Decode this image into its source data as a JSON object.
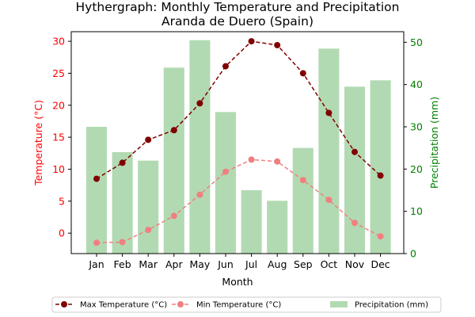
{
  "chart_data": {
    "type": "bar+line",
    "title_line1": "Hythergraph: Monthly Temperature and Precipitation",
    "title_line2": "Aranda de Duero (Spain)",
    "xlabel": "Month",
    "ylabel_left": "Temperature (°C)",
    "ylabel_right": "Precipitation (mm)",
    "categories": [
      "Jan",
      "Feb",
      "Mar",
      "Apr",
      "May",
      "Jun",
      "Jul",
      "Aug",
      "Sep",
      "Oct",
      "Nov",
      "Dec"
    ],
    "ylim_left": [
      -3.2,
      31.5
    ],
    "ylim_right": [
      0,
      52.5
    ],
    "yticks_left": [
      0,
      5,
      10,
      15,
      20,
      25,
      30
    ],
    "yticks_right": [
      0,
      10,
      20,
      30,
      40,
      50
    ],
    "series": [
      {
        "name": "Max Temperature (°C)",
        "kind": "line",
        "axis": "left",
        "color": "#800000",
        "values": [
          8.5,
          11.0,
          14.6,
          16.1,
          20.3,
          26.1,
          30.0,
          29.4,
          25.0,
          18.8,
          12.7,
          9.0
        ]
      },
      {
        "name": "Min Temperature (°C)",
        "kind": "line",
        "axis": "left",
        "color": "#f08080",
        "values": [
          -1.5,
          -1.4,
          0.5,
          2.7,
          6.0,
          9.6,
          11.5,
          11.2,
          8.3,
          5.2,
          1.6,
          -0.5
        ]
      },
      {
        "name": "Precipitation (mm)",
        "kind": "bar",
        "axis": "right",
        "color": "#b2dab2",
        "values": [
          30,
          24,
          22,
          44,
          50.5,
          33.5,
          15,
          12.5,
          25,
          48.5,
          39.5,
          41
        ]
      }
    ],
    "left_axis_color": "#ff0000",
    "right_axis_color": "#008000",
    "legend_position": "bottom"
  }
}
